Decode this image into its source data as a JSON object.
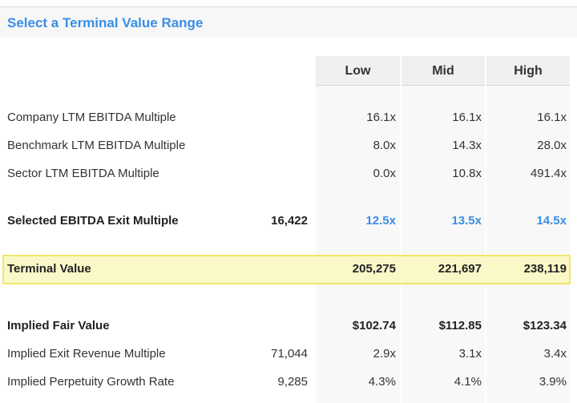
{
  "section": {
    "title": "Select a Terminal Value Range"
  },
  "columns": {
    "low": "Low",
    "mid": "Mid",
    "high": "High"
  },
  "rows": {
    "company_ltm": {
      "label": "Company LTM EBITDA Multiple",
      "low": "16.1x",
      "mid": "16.1x",
      "high": "16.1x"
    },
    "benchmark_ltm": {
      "label": "Benchmark LTM EBITDA Multiple",
      "low": "8.0x",
      "mid": "14.3x",
      "high": "28.0x"
    },
    "sector_ltm": {
      "label": "Sector LTM EBITDA Multiple",
      "low": "0.0x",
      "mid": "10.8x",
      "high": "491.4x"
    },
    "selected_exit": {
      "label": "Selected EBITDA Exit Multiple",
      "extra": "16,422",
      "low": "12.5x",
      "mid": "13.5x",
      "high": "14.5x"
    },
    "terminal_value": {
      "label": "Terminal Value",
      "low": "205,275",
      "mid": "221,697",
      "high": "238,119"
    },
    "implied_fair_value": {
      "label": "Implied Fair Value",
      "low": "$102.74",
      "mid": "$112.85",
      "high": "$123.34"
    },
    "implied_exit_revenue": {
      "label": "Implied Exit Revenue Multiple",
      "extra": "71,044",
      "low": "2.9x",
      "mid": "3.1x",
      "high": "3.4x"
    },
    "implied_growth": {
      "label": "Implied Perpetuity Growth Rate",
      "extra": "9,285",
      "low": "4.3%",
      "mid": "4.1%",
      "high": "3.9%"
    }
  },
  "colors": {
    "title_blue": "#3a8ee6",
    "highlight_fill": "#fbf8c8",
    "highlight_border": "#f1e766"
  }
}
